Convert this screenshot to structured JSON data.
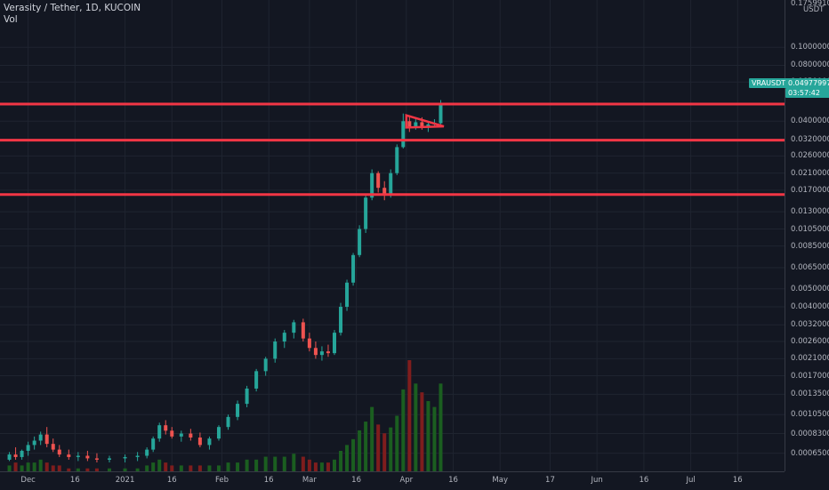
{
  "legend": {
    "title": "Verasity / Tether, 1D, KUCOIN",
    "volume_label": "Vol"
  },
  "price_scale": {
    "unit": "USDT",
    "ticks": [
      "0.17599100",
      "0.10000000",
      "0.08000000",
      "0.06500000",
      "0.04000000",
      "0.03200000",
      "0.02600000",
      "0.02100000",
      "0.01700000",
      "0.01300000",
      "0.01050000",
      "0.00850000",
      "0.00650000",
      "0.00500000",
      "0.00400000",
      "0.00320000",
      "0.00260000",
      "0.00210000",
      "0.00170000",
      "0.00135000",
      "0.00105000",
      "0.00083000",
      "0.00065000"
    ]
  },
  "time_scale": {
    "ticks": [
      "Dec",
      "16",
      "2021",
      "16",
      "Feb",
      "16",
      "Mar",
      "16",
      "Apr",
      "16",
      "May",
      "17",
      "Jun",
      "16",
      "Jul",
      "16"
    ]
  },
  "symbol_badge": "VRAUSDT",
  "last_price": "0.04977997",
  "countdown": "03:57:42",
  "colors": {
    "up": "#26a69a",
    "down": "#ef5350",
    "level_line": "#f23645",
    "vol_up": "#1b5e20",
    "vol_down": "#7f1d1d"
  },
  "chart_data": {
    "type": "candlestick",
    "scale": "log",
    "ylim": [
      0.00058,
      0.176
    ],
    "horizontal_levels": [
      0.0495,
      0.0316,
      0.0161
    ],
    "triangle": {
      "from": [
        "2021-04-01",
        0.043
      ],
      "apex": [
        "2021-04-13",
        0.0375
      ],
      "lower": [
        "2021-04-01",
        0.037
      ]
    },
    "series": [
      {
        "date": "2020-11-25",
        "o": 0.0006,
        "h": 0.00066,
        "l": 0.00059,
        "c": 0.00064
      },
      {
        "date": "2020-11-27",
        "o": 0.00064,
        "h": 0.0007,
        "l": 0.0006,
        "c": 0.00062
      },
      {
        "date": "2020-11-29",
        "o": 0.00062,
        "h": 0.00068,
        "l": 0.0006,
        "c": 0.00067
      },
      {
        "date": "2020-12-01",
        "o": 0.00067,
        "h": 0.00075,
        "l": 0.00063,
        "c": 0.00072
      },
      {
        "date": "2020-12-03",
        "o": 0.00072,
        "h": 0.0008,
        "l": 0.00068,
        "c": 0.00076
      },
      {
        "date": "2020-12-05",
        "o": 0.00076,
        "h": 0.00085,
        "l": 0.00072,
        "c": 0.00082
      },
      {
        "date": "2020-12-07",
        "o": 0.00082,
        "h": 0.0009,
        "l": 0.0007,
        "c": 0.00073
      },
      {
        "date": "2020-12-09",
        "o": 0.00073,
        "h": 0.00078,
        "l": 0.00066,
        "c": 0.00068
      },
      {
        "date": "2020-12-11",
        "o": 0.00068,
        "h": 0.00072,
        "l": 0.00062,
        "c": 0.00064
      },
      {
        "date": "2020-12-14",
        "o": 0.00064,
        "h": 0.00068,
        "l": 0.0006,
        "c": 0.00062
      },
      {
        "date": "2020-12-17",
        "o": 0.00062,
        "h": 0.00066,
        "l": 0.00059,
        "c": 0.00063
      },
      {
        "date": "2020-12-20",
        "o": 0.00063,
        "h": 0.00067,
        "l": 0.00059,
        "c": 0.00061
      },
      {
        "date": "2020-12-23",
        "o": 0.00061,
        "h": 0.00065,
        "l": 0.00058,
        "c": 0.0006
      },
      {
        "date": "2020-12-27",
        "o": 0.0006,
        "h": 0.00063,
        "l": 0.00058,
        "c": 0.00061
      },
      {
        "date": "2021-01-01",
        "o": 0.00061,
        "h": 0.00064,
        "l": 0.00058,
        "c": 0.00062
      },
      {
        "date": "2021-01-05",
        "o": 0.00062,
        "h": 0.00066,
        "l": 0.00059,
        "c": 0.00063
      },
      {
        "date": "2021-01-08",
        "o": 0.00063,
        "h": 0.0007,
        "l": 0.00061,
        "c": 0.00068
      },
      {
        "date": "2021-01-10",
        "o": 0.00068,
        "h": 0.0008,
        "l": 0.00066,
        "c": 0.00078
      },
      {
        "date": "2021-01-12",
        "o": 0.00078,
        "h": 0.00095,
        "l": 0.00075,
        "c": 0.00092
      },
      {
        "date": "2021-01-14",
        "o": 0.00092,
        "h": 0.00098,
        "l": 0.00082,
        "c": 0.00086
      },
      {
        "date": "2021-01-16",
        "o": 0.00086,
        "h": 0.0009,
        "l": 0.00078,
        "c": 0.0008
      },
      {
        "date": "2021-01-19",
        "o": 0.0008,
        "h": 0.00086,
        "l": 0.00075,
        "c": 0.00083
      },
      {
        "date": "2021-01-22",
        "o": 0.00083,
        "h": 0.00088,
        "l": 0.00076,
        "c": 0.00079
      },
      {
        "date": "2021-01-25",
        "o": 0.00079,
        "h": 0.00084,
        "l": 0.0007,
        "c": 0.00072
      },
      {
        "date": "2021-01-28",
        "o": 0.00072,
        "h": 0.0008,
        "l": 0.00068,
        "c": 0.00078
      },
      {
        "date": "2021-01-31",
        "o": 0.00078,
        "h": 0.00092,
        "l": 0.00076,
        "c": 0.0009
      },
      {
        "date": "2021-02-03",
        "o": 0.0009,
        "h": 0.00105,
        "l": 0.00087,
        "c": 0.00102
      },
      {
        "date": "2021-02-06",
        "o": 0.00102,
        "h": 0.00125,
        "l": 0.00098,
        "c": 0.0012
      },
      {
        "date": "2021-02-09",
        "o": 0.0012,
        "h": 0.0015,
        "l": 0.00115,
        "c": 0.00145
      },
      {
        "date": "2021-02-12",
        "o": 0.00145,
        "h": 0.00185,
        "l": 0.0014,
        "c": 0.0018
      },
      {
        "date": "2021-02-15",
        "o": 0.0018,
        "h": 0.00215,
        "l": 0.0017,
        "c": 0.0021
      },
      {
        "date": "2021-02-18",
        "o": 0.0021,
        "h": 0.0027,
        "l": 0.002,
        "c": 0.0026
      },
      {
        "date": "2021-02-21",
        "o": 0.0026,
        "h": 0.003,
        "l": 0.0024,
        "c": 0.0029
      },
      {
        "date": "2021-02-24",
        "o": 0.0029,
        "h": 0.0034,
        "l": 0.0027,
        "c": 0.0033
      },
      {
        "date": "2021-02-27",
        "o": 0.0033,
        "h": 0.00345,
        "l": 0.0026,
        "c": 0.0027
      },
      {
        "date": "2021-03-01",
        "o": 0.0027,
        "h": 0.0029,
        "l": 0.0023,
        "c": 0.0024
      },
      {
        "date": "2021-03-03",
        "o": 0.0024,
        "h": 0.0026,
        "l": 0.0021,
        "c": 0.0022
      },
      {
        "date": "2021-03-05",
        "o": 0.0022,
        "h": 0.00245,
        "l": 0.00205,
        "c": 0.0023
      },
      {
        "date": "2021-03-07",
        "o": 0.0023,
        "h": 0.0025,
        "l": 0.00215,
        "c": 0.00225
      },
      {
        "date": "2021-03-09",
        "o": 0.00225,
        "h": 0.003,
        "l": 0.0022,
        "c": 0.0029
      },
      {
        "date": "2021-03-11",
        "o": 0.0029,
        "h": 0.0042,
        "l": 0.0028,
        "c": 0.004
      },
      {
        "date": "2021-03-13",
        "o": 0.004,
        "h": 0.0056,
        "l": 0.0038,
        "c": 0.0054
      },
      {
        "date": "2021-03-15",
        "o": 0.0054,
        "h": 0.0078,
        "l": 0.0052,
        "c": 0.0076
      },
      {
        "date": "2021-03-17",
        "o": 0.0076,
        "h": 0.011,
        "l": 0.0074,
        "c": 0.0105
      },
      {
        "date": "2021-03-19",
        "o": 0.0105,
        "h": 0.016,
        "l": 0.01,
        "c": 0.0155
      },
      {
        "date": "2021-03-21",
        "o": 0.0155,
        "h": 0.022,
        "l": 0.015,
        "c": 0.021
      },
      {
        "date": "2021-03-23",
        "o": 0.021,
        "h": 0.0215,
        "l": 0.0165,
        "c": 0.0175
      },
      {
        "date": "2021-03-25",
        "o": 0.0175,
        "h": 0.019,
        "l": 0.015,
        "c": 0.016
      },
      {
        "date": "2021-03-27",
        "o": 0.016,
        "h": 0.022,
        "l": 0.0155,
        "c": 0.021
      },
      {
        "date": "2021-03-29",
        "o": 0.021,
        "h": 0.03,
        "l": 0.0205,
        "c": 0.029
      },
      {
        "date": "2021-03-31",
        "o": 0.029,
        "h": 0.044,
        "l": 0.0285,
        "c": 0.04
      },
      {
        "date": "2021-04-02",
        "o": 0.04,
        "h": 0.043,
        "l": 0.035,
        "c": 0.037
      },
      {
        "date": "2021-04-04",
        "o": 0.037,
        "h": 0.041,
        "l": 0.036,
        "c": 0.0395
      },
      {
        "date": "2021-04-06",
        "o": 0.0395,
        "h": 0.042,
        "l": 0.036,
        "c": 0.0375
      },
      {
        "date": "2021-04-08",
        "o": 0.0375,
        "h": 0.04,
        "l": 0.035,
        "c": 0.0385
      },
      {
        "date": "2021-04-10",
        "o": 0.0385,
        "h": 0.041,
        "l": 0.037,
        "c": 0.039
      },
      {
        "date": "2021-04-12",
        "o": 0.039,
        "h": 0.052,
        "l": 0.0385,
        "c": 0.04978
      }
    ],
    "volume": [
      2,
      3,
      2,
      3,
      3,
      4,
      3,
      2,
      2,
      1,
      1,
      1,
      1,
      1,
      1,
      1,
      2,
      3,
      4,
      3,
      2,
      2,
      2,
      2,
      2,
      2,
      3,
      3,
      4,
      4,
      5,
      5,
      5,
      6,
      5,
      4,
      3,
      3,
      3,
      4,
      7,
      9,
      11,
      14,
      17,
      22,
      16,
      13,
      15,
      19,
      28,
      38,
      30,
      27,
      24,
      22,
      30
    ]
  }
}
